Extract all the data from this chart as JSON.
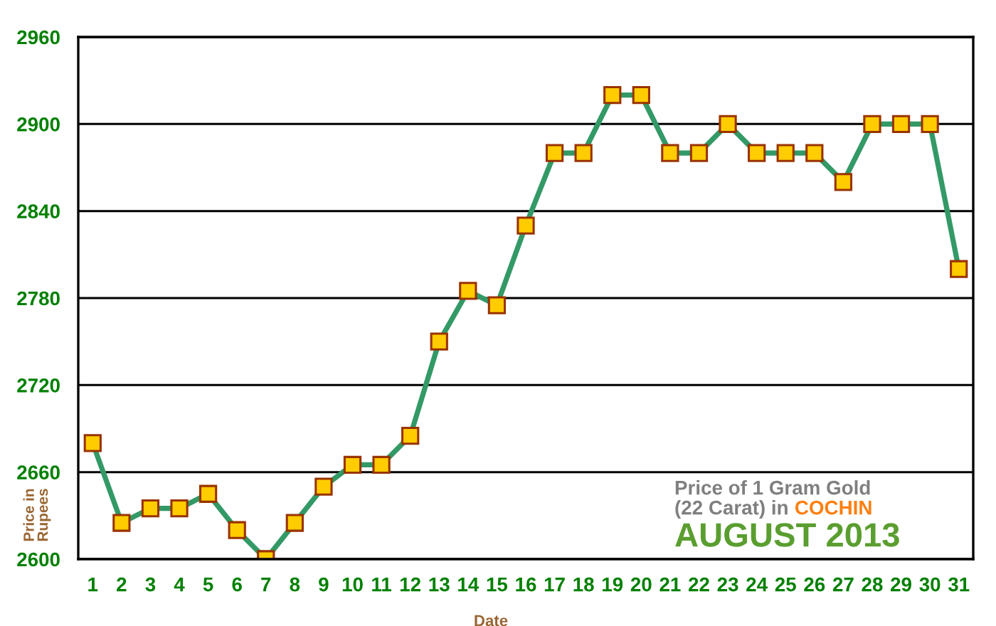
{
  "chart_data": {
    "type": "line",
    "title": "Price of 1 Gram Gold\n(22 Carat) in COCHIN",
    "subtitle": "AUGUST 2013",
    "xlabel": "Date",
    "ylabel": "Price in\nRupees",
    "categories": [
      "1",
      "2",
      "3",
      "4",
      "5",
      "6",
      "7",
      "8",
      "9",
      "10",
      "11",
      "12",
      "13",
      "14",
      "15",
      "16",
      "17",
      "18",
      "19",
      "20",
      "21",
      "22",
      "23",
      "24",
      "25",
      "26",
      "27",
      "28",
      "29",
      "30",
      "31"
    ],
    "series": [
      {
        "color": "#339966",
        "values": [
          2680,
          2625,
          2635,
          2635,
          2645,
          2620,
          2600,
          2625,
          2650,
          2665,
          2665,
          2685,
          2750,
          2785,
          2775,
          2830,
          2880,
          2880,
          2920,
          2920,
          2880,
          2880,
          2900,
          2880,
          2880,
          2880,
          2860,
          2900,
          2900,
          2900,
          2800
        ]
      }
    ],
    "ylim": [
      2600,
      2960
    ],
    "yticks": [
      2600,
      2660,
      2720,
      2780,
      2840,
      2900,
      2960
    ],
    "grid": "y",
    "marker": "square",
    "line_style": "solid"
  }
}
